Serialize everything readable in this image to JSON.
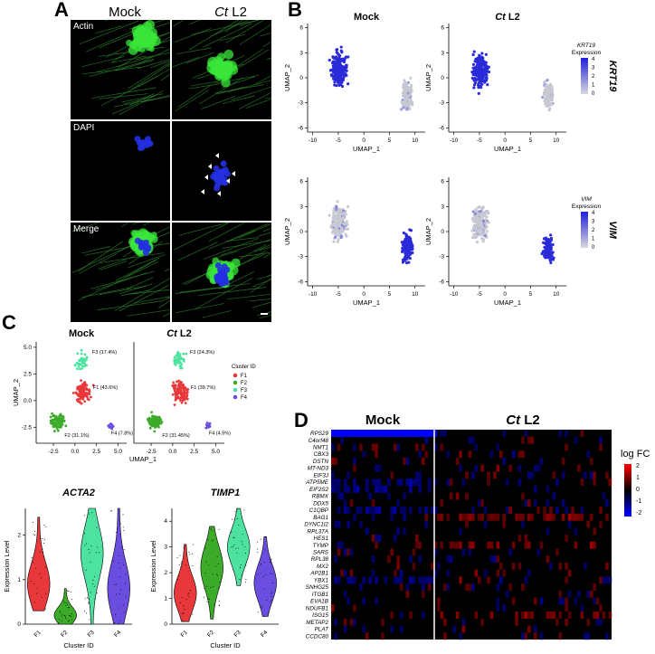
{
  "panelA": {
    "label": "A",
    "col_mock": "Mock",
    "col_ct_italic": "Ct",
    "col_ct_rest": " L2",
    "rows": [
      "Actin",
      "DAPI",
      "Merge"
    ]
  },
  "panelB": {
    "label": "B",
    "titles": [
      "Mock",
      "Ct",
      " L2"
    ],
    "xlabel": "UMAP_1",
    "ylabel": "UMAP_2",
    "x_ticks": [
      "-10",
      "-5",
      "0",
      "5",
      "10"
    ],
    "y_ticks": [
      "6",
      "3",
      "0",
      "-3",
      "-6"
    ],
    "legend_top": {
      "gene": "KRT19",
      "word": "Expression",
      "ticks": [
        "4",
        "3",
        "2",
        "1",
        "0"
      ],
      "side": "KRT19"
    },
    "legend_bottom": {
      "gene": "VIM",
      "word": "Expression",
      "ticks": [
        "4",
        "3",
        "2",
        "1",
        "0"
      ],
      "side": "VIM"
    },
    "colors": {
      "high": "#2b2bd9",
      "low": "#c8c8d2"
    }
  },
  "panelC": {
    "label": "C",
    "title_mock": "Mock",
    "title_ct_italic": "Ct",
    "title_ct_rest": " L2",
    "legend_title": "Cluster ID",
    "clusters": [
      {
        "name": "F1",
        "color": "#e8383b"
      },
      {
        "name": "F2",
        "color": "#3dab2a"
      },
      {
        "name": "F3",
        "color": "#4de2a0"
      },
      {
        "name": "F4",
        "color": "#6b4de0"
      }
    ],
    "mock_annotations": [
      "F3 (17.4%)",
      "F1 (43.6%)",
      "F2 (31.1%)",
      "F4 (7.8%)"
    ],
    "ct_annotations": [
      "F3 (24.3%)",
      "F1 (39.7%)",
      "F2 (31.45%)",
      "F4 (4.5%)"
    ],
    "umap_xlabel": "UMAP_1",
    "umap_ylabel": "UMAP_2",
    "umap_xticks": [
      "-2.5",
      "0.0",
      "2.5",
      "5.0"
    ],
    "umap_yticks": [
      "5.0",
      "2.5",
      "0.0",
      "-2.5"
    ],
    "umap_xticks2": [
      "-2.5",
      "0.0",
      "2.5",
      "5.0"
    ],
    "violin_acta2": {
      "title": "ACTA2",
      "yticks": [
        "2",
        "1",
        "0"
      ],
      "xlabel": "Cluster ID",
      "ylabel": "Expression Level",
      "cats": [
        "F1",
        "F2",
        "F3",
        "F4"
      ]
    },
    "violin_timp1": {
      "title": "TIMP1",
      "yticks": [
        "4",
        "3",
        "2",
        "1",
        "0"
      ],
      "xlabel": "Cluster ID",
      "ylabel": "Expression Level",
      "cats": [
        "F1",
        "F2",
        "F3",
        "F4"
      ]
    }
  },
  "panelD": {
    "label": "D",
    "title_mock": "Mock",
    "title_ct_italic": "Ct",
    "title_ct_rest": " L2",
    "genes": [
      "RPS29",
      "C4orf48",
      "NMT1",
      "CBX3",
      "DSTN",
      "MT-ND3",
      "EIF3J",
      "ATP5ME",
      "EIF2S2",
      "RBMX",
      "DDX5",
      "C1QBP",
      "BAG1",
      "DYNC1I2",
      "RPL37A",
      "HES1",
      "TYMP",
      "SARS",
      "RPL38",
      "MX2",
      "AP2B1",
      "YBX1",
      "SNHG25",
      "ITGB1",
      "EVA1B",
      "NDUFB1",
      "ISG15",
      "METAP2",
      "PLAT",
      "CCDC80"
    ],
    "legend_title": "log FC",
    "legend_ticks": [
      "2",
      "1",
      "0",
      "-1",
      "-2"
    ]
  }
}
